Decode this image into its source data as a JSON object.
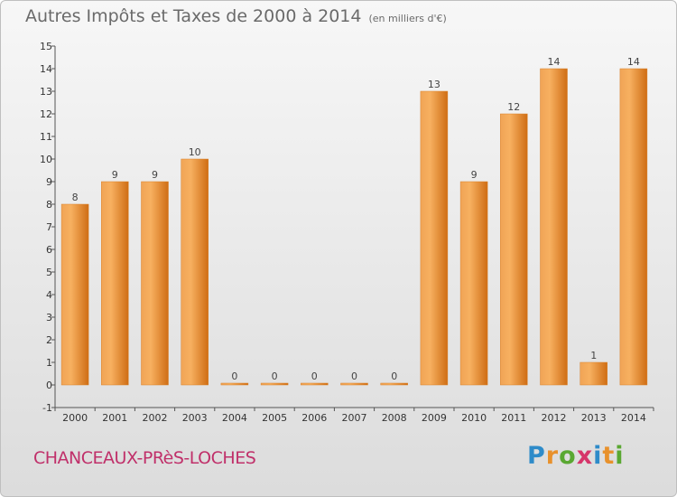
{
  "header": {
    "title": "Autres Impôts et Taxes de 2000 à 2014",
    "unit": "(en milliers d'€)"
  },
  "footer": {
    "commune": "CHANCEAUX-PRèS-LOCHES",
    "logo_letters": [
      "P",
      "r",
      "o",
      "x",
      "i",
      "t",
      "i"
    ],
    "logo_colors": [
      "#2e8bc9",
      "#e8912c",
      "#5aa832",
      "#d6356a",
      "#2e8bc9",
      "#e8912c",
      "#5aa832"
    ]
  },
  "chart_data": {
    "type": "bar",
    "title": "Autres Impôts et Taxes de 2000 à 2014",
    "subtitle": "(en milliers d'€)",
    "categories": [
      "2000",
      "2001",
      "2002",
      "2003",
      "2004",
      "2005",
      "2006",
      "2007",
      "2008",
      "2009",
      "2010",
      "2011",
      "2012",
      "2013",
      "2014"
    ],
    "values": [
      8,
      9,
      9,
      10,
      0,
      0,
      0,
      0,
      0,
      13,
      9,
      12,
      14,
      1,
      14
    ],
    "value_labels": [
      "8",
      "9",
      "9",
      "10",
      "0",
      "0",
      "0",
      "0",
      "0",
      "13",
      "9",
      "12",
      "14",
      "1",
      "14"
    ],
    "y_ticks": [
      "-1",
      "0",
      "1",
      "2",
      "3",
      "4",
      "5",
      "6",
      "7",
      "8",
      "9",
      "10",
      "11",
      "12",
      "13",
      "14",
      "15"
    ],
    "ylim": [
      -1,
      15
    ],
    "grid": false,
    "bar_color": "#e8882a"
  }
}
